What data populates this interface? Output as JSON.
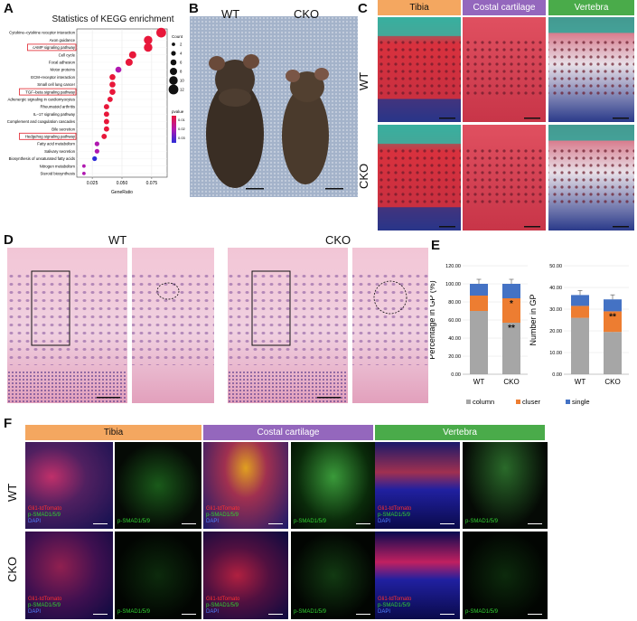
{
  "panel_labels": {
    "a": "A",
    "b": "B",
    "c": "C",
    "d": "D",
    "e": "E",
    "f": "F"
  },
  "panel_a": {
    "title": "Statistics of KEGG enrichment",
    "xlabel": "GeneRatio",
    "x_ticks": [
      "0.025",
      "0.050",
      "0.075"
    ],
    "legend_count_title": "Count",
    "legend_count_values": [
      "2",
      "4",
      "6",
      "8",
      "10",
      "12"
    ],
    "legend_p_title": "pvalue",
    "legend_p_values": [
      "0.01",
      "0.02",
      "0.03"
    ],
    "colors": {
      "high": "#e8173a",
      "mid": "#b018b0",
      "low": "#2c2cd8"
    },
    "pathways": [
      {
        "name": "Cytokine–cytokine receptor interaction",
        "ratio": 0.083,
        "count": 12,
        "pvalue": 0.004,
        "boxed": false
      },
      {
        "name": "Axon guidance",
        "ratio": 0.072,
        "count": 10,
        "pvalue": 0.006,
        "boxed": false
      },
      {
        "name": "cAMP signaling pathway",
        "ratio": 0.072,
        "count": 10,
        "pvalue": 0.006,
        "boxed": true
      },
      {
        "name": "Cell cycle",
        "ratio": 0.059,
        "count": 8,
        "pvalue": 0.007,
        "boxed": false
      },
      {
        "name": "Focal adhesion",
        "ratio": 0.056,
        "count": 8,
        "pvalue": 0.007,
        "boxed": false
      },
      {
        "name": "Motor proteins",
        "ratio": 0.047,
        "count": 6,
        "pvalue": 0.02,
        "boxed": false
      },
      {
        "name": "ECM–receptor interaction",
        "ratio": 0.042,
        "count": 6,
        "pvalue": 0.006,
        "boxed": false
      },
      {
        "name": "Small cell lung cancer",
        "ratio": 0.042,
        "count": 6,
        "pvalue": 0.006,
        "boxed": false
      },
      {
        "name": "TGF–beta signaling pathway",
        "ratio": 0.042,
        "count": 6,
        "pvalue": 0.006,
        "boxed": true
      },
      {
        "name": "Adrenergic signaling in cardiomyocytes",
        "ratio": 0.04,
        "count": 5,
        "pvalue": 0.006,
        "boxed": false
      },
      {
        "name": "Rheumatoid arthritis",
        "ratio": 0.037,
        "count": 5,
        "pvalue": 0.006,
        "boxed": false
      },
      {
        "name": "IL–17 signaling pathway",
        "ratio": 0.037,
        "count": 5,
        "pvalue": 0.006,
        "boxed": false
      },
      {
        "name": "Complement and coagulation cascades",
        "ratio": 0.037,
        "count": 5,
        "pvalue": 0.006,
        "boxed": false
      },
      {
        "name": "Bile secretion",
        "ratio": 0.037,
        "count": 5,
        "pvalue": 0.006,
        "boxed": false
      },
      {
        "name": "Hedgehog signaling pathway",
        "ratio": 0.035,
        "count": 5,
        "pvalue": 0.006,
        "boxed": true
      },
      {
        "name": "Fatty acid metabolism",
        "ratio": 0.029,
        "count": 4,
        "pvalue": 0.01,
        "boxed": false
      },
      {
        "name": "Salivary secretion",
        "ratio": 0.029,
        "count": 4,
        "pvalue": 0.01,
        "boxed": false
      },
      {
        "name": "Biosynthesis of unsaturated fatty acids",
        "ratio": 0.027,
        "count": 4,
        "pvalue": 0.032,
        "boxed": false
      },
      {
        "name": "Nitrogen metabolism",
        "ratio": 0.018,
        "count": 2,
        "pvalue": 0.02,
        "boxed": false
      },
      {
        "name": "Steroid biosynthesis",
        "ratio": 0.018,
        "count": 2,
        "pvalue": 0.02,
        "boxed": false
      }
    ]
  },
  "panel_b": {
    "label_wt": "WT",
    "label_cko": "CKO"
  },
  "panel_c": {
    "headers": [
      "Tibia",
      "Costal cartilage",
      "Vertebra"
    ],
    "header_colors": [
      "#f4a760",
      "#9467bd",
      "#4aab4a"
    ],
    "row_labels": [
      "WT",
      "CKO"
    ]
  },
  "panel_d": {
    "label_wt": "WT",
    "label_cko": "CKO"
  },
  "chart_data": [
    {
      "type": "bar",
      "stacked": true,
      "categories": [
        "WT",
        "CKO"
      ],
      "ylabel": "Percentage in GP (%)",
      "ylim": [
        0,
        120
      ],
      "yticks": [
        "0.00",
        "20.00",
        "40.00",
        "60.00",
        "80.00",
        "100.00",
        "120.00"
      ],
      "series": [
        {
          "name": "column",
          "color": "#a6a6a6",
          "values": [
            70,
            57
          ]
        },
        {
          "name": "cluser",
          "color": "#ed7d31",
          "values": [
            17,
            27
          ]
        },
        {
          "name": "single",
          "color": "#4472c4",
          "values": [
            13,
            16
          ]
        }
      ],
      "annotations": [
        {
          "category": "CKO",
          "series": "column",
          "text": "**"
        },
        {
          "category": "CKO",
          "series": "cluser",
          "text": "*"
        }
      ]
    },
    {
      "type": "bar",
      "stacked": true,
      "categories": [
        "WT",
        "CKO"
      ],
      "ylabel": "Number in GP",
      "ylim": [
        0,
        50
      ],
      "yticks": [
        "0.00",
        "10.00",
        "20.00",
        "30.00",
        "40.00",
        "50.00"
      ],
      "series": [
        {
          "name": "column",
          "color": "#a6a6a6",
          "values": [
            26,
            19.5
          ]
        },
        {
          "name": "cluser",
          "color": "#ed7d31",
          "values": [
            5.5,
            9.5
          ]
        },
        {
          "name": "single",
          "color": "#4472c4",
          "values": [
            5,
            5.5
          ]
        }
      ],
      "annotations": [
        {
          "category": "CKO",
          "series": "cluser",
          "text": "**"
        }
      ]
    }
  ],
  "panel_e": {
    "legend": [
      "column",
      "cluser",
      "single"
    ],
    "legend_colors": [
      "#a6a6a6",
      "#ed7d31",
      "#4472c4"
    ]
  },
  "panel_f": {
    "headers": [
      "Tibia",
      "Costal cartilage",
      "Vertebra"
    ],
    "header_colors": [
      "#f4a760",
      "#9467bd",
      "#4aab4a"
    ],
    "row_labels": [
      "WT",
      "CKO"
    ],
    "merge_labels": [
      "Gli1-tdTomato",
      "p-SMAD1/5/9",
      "DAPI"
    ],
    "green_label": "p-SMAD1/5/9"
  }
}
